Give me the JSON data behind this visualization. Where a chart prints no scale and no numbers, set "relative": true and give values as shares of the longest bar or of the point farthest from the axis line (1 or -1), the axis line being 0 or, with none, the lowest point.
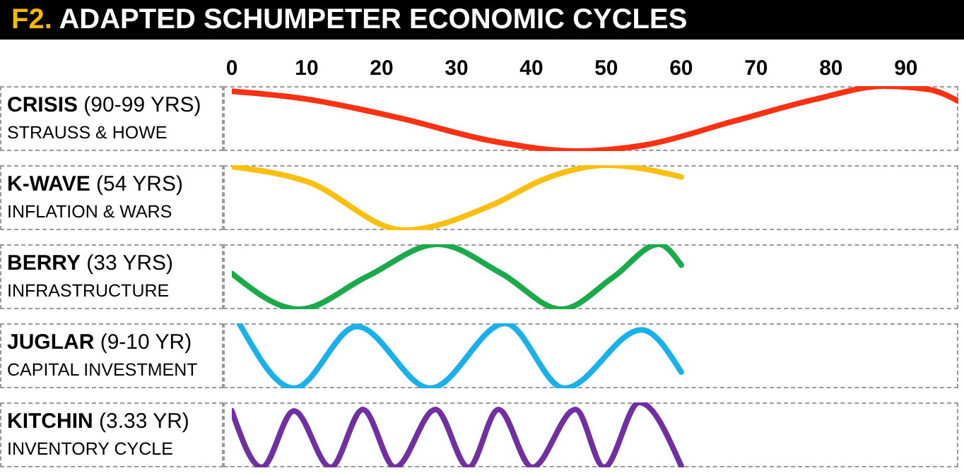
{
  "chart_data": [
    {
      "type": "other",
      "title": "F2. ADAPTED SCHUMPETER ECONOMIC CYCLES"
    },
    {
      "type": "line",
      "title": "CRISIS (90-99 YRS)",
      "subtitle": "STRAUSS & HOWE",
      "relative": true,
      "marker": "none",
      "xlim": [
        0,
        97
      ],
      "xticks": [
        0,
        10,
        20,
        30,
        40,
        50,
        60,
        70,
        80,
        90
      ],
      "tick_labels": "x",
      "series": [
        {
          "color": "#fa3214",
          "x": [
            0,
            10,
            22,
            35,
            46,
            55,
            67,
            78,
            87,
            93,
            97
          ],
          "values": [
            0.92,
            0.8,
            0.52,
            0.15,
            0,
            0.09,
            0.46,
            0.8,
            1,
            0.95,
            0.77
          ]
        }
      ]
    },
    {
      "type": "line",
      "title": "K-WAVE (54 YRS)",
      "subtitle": "INFLATION & WARS",
      "relative": true,
      "marker": "none",
      "xlim": [
        0,
        97
      ],
      "tick_labels": false,
      "series": [
        {
          "color": "#fbbf0f",
          "x": [
            0,
            10,
            23,
            35,
            42,
            50,
            60
          ],
          "values": [
            0.98,
            0.75,
            0,
            0.4,
            0.8,
            1,
            0.82
          ]
        }
      ]
    },
    {
      "type": "line",
      "title": "BERRY (33 YRS)",
      "subtitle": "INFRASTRUCTURE",
      "relative": true,
      "marker": "none",
      "xlim": [
        0,
        97
      ],
      "tick_labels": false,
      "series": [
        {
          "color": "#1aaa4a",
          "x": [
            0,
            9,
            18,
            27.5,
            36,
            44,
            51,
            57,
            60
          ],
          "values": [
            0.55,
            0,
            0.5,
            1,
            0.55,
            0,
            0.5,
            1,
            0.68
          ]
        }
      ]
    },
    {
      "type": "line",
      "title": "JUGLAR (9-10 YR)",
      "subtitle": "CAPITAL INVESTMENT",
      "relative": true,
      "marker": "none",
      "xlim": [
        0,
        97
      ],
      "tick_labels": false,
      "series": [
        {
          "color": "#1ab0ea",
          "x": [
            1,
            8.3,
            16.7,
            26.5,
            36.5,
            44.4,
            54.7,
            60
          ],
          "values": [
            1,
            0,
            0.95,
            0,
            1,
            0,
            0.9,
            0.25
          ]
        }
      ]
    },
    {
      "type": "line",
      "title": "KITCHIN (3.33 YR)",
      "subtitle": "INVENTORY CYCLE",
      "relative": true,
      "marker": "none",
      "xlim": [
        0,
        97
      ],
      "tick_labels": false,
      "series": [
        {
          "color": "#7030a0",
          "x": [
            0,
            4,
            8.3,
            13.2,
            17.5,
            21.8,
            27.2,
            31.6,
            35.6,
            40.1,
            45.9,
            49.7,
            54.4,
            60
          ],
          "values": [
            0.87,
            0,
            0.87,
            0,
            0.89,
            0,
            0.89,
            0,
            0.89,
            0,
            0.89,
            0,
            1,
            0.02
          ]
        }
      ]
    }
  ]
}
